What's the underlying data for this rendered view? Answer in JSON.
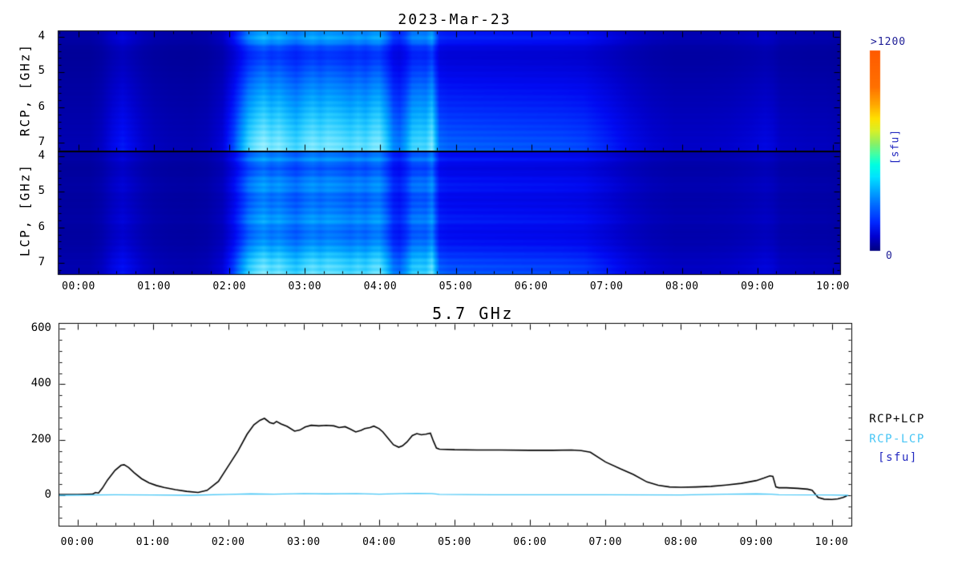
{
  "background": "#ffffff",
  "chart_data": [
    {
      "type": "heatmap",
      "title": "2023-Mar-23",
      "panels": [
        {
          "label": "RCP, [GHz]",
          "freq_tick_labels": [
            "4",
            "5",
            "6",
            "7"
          ]
        },
        {
          "label": "LCP, [GHz]",
          "freq_tick_labels": [
            "4",
            "5",
            "6",
            "7"
          ]
        }
      ],
      "x_tick_labels": [
        "00:00",
        "01:00",
        "02:00",
        "03:00",
        "04:00",
        "05:00",
        "06:00",
        "07:00",
        "08:00",
        "09:00",
        "10:00"
      ],
      "x_range_hours": [
        -0.28,
        10.1
      ],
      "freq_range_ghz": [
        3.84,
        7.3
      ],
      "value_range_sfu": [
        0,
        1200
      ],
      "colorbar": {
        "max_label": ">1200",
        "min_label": "0",
        "unit_label": "[sfu]",
        "label_color": "#1c1c96",
        "stops": [
          [
            0,
            "#000080"
          ],
          [
            0.07,
            "#0000d0"
          ],
          [
            0.14,
            "#0028ff"
          ],
          [
            0.22,
            "#0064ff"
          ],
          [
            0.3,
            "#00a8ff"
          ],
          [
            0.37,
            "#00e4ff"
          ],
          [
            0.43,
            "#00ffe0"
          ],
          [
            0.48,
            "#40ffa8"
          ],
          [
            0.54,
            "#90f060"
          ],
          [
            0.6,
            "#d8f028"
          ],
          [
            0.66,
            "#ffe000"
          ],
          [
            0.73,
            "#ffa800"
          ],
          [
            0.82,
            "#ff7000"
          ],
          [
            1,
            "#ff5a00"
          ]
        ]
      },
      "colormap": [
        [
          0,
          "#000078"
        ],
        [
          0.08,
          "#0000a2"
        ],
        [
          0.16,
          "#0000ca"
        ],
        [
          0.25,
          "#000af2"
        ],
        [
          0.35,
          "#0038ff"
        ],
        [
          0.45,
          "#0072ff"
        ],
        [
          0.55,
          "#00a2ff"
        ],
        [
          0.65,
          "#22c8ff"
        ],
        [
          0.75,
          "#5adeff"
        ],
        [
          0.85,
          "#92eeff"
        ],
        [
          1,
          "#caf8ff"
        ]
      ],
      "base_level": 0.03,
      "texture_amplitude": {
        "rcp": 0.035,
        "lcp": 0.05
      },
      "time_profile": [
        [
          -0.28,
          0.1
        ],
        [
          0.15,
          0.1
        ],
        [
          0.3,
          0.14
        ],
        [
          0.45,
          0.24
        ],
        [
          0.58,
          0.3
        ],
        [
          0.7,
          0.24
        ],
        [
          0.85,
          0.17
        ],
        [
          1.0,
          0.13
        ],
        [
          1.2,
          0.11
        ],
        [
          1.5,
          0.1
        ],
        [
          1.7,
          0.12
        ],
        [
          1.9,
          0.2
        ],
        [
          2.05,
          0.42
        ],
        [
          2.15,
          0.62
        ],
        [
          2.25,
          0.82
        ],
        [
          2.35,
          0.92
        ],
        [
          2.45,
          1.0
        ],
        [
          2.55,
          0.9
        ],
        [
          2.65,
          0.96
        ],
        [
          2.75,
          0.88
        ],
        [
          2.88,
          0.8
        ],
        [
          3.0,
          0.9
        ],
        [
          3.1,
          0.95
        ],
        [
          3.2,
          0.88
        ],
        [
          3.3,
          0.94
        ],
        [
          3.45,
          0.9
        ],
        [
          3.6,
          0.84
        ],
        [
          3.7,
          0.9
        ],
        [
          3.8,
          0.84
        ],
        [
          3.9,
          0.93
        ],
        [
          3.98,
          0.95
        ],
        [
          4.08,
          0.76
        ],
        [
          4.17,
          0.56
        ],
        [
          4.25,
          0.52
        ],
        [
          4.33,
          0.62
        ],
        [
          4.42,
          0.8
        ],
        [
          4.52,
          0.82
        ],
        [
          4.6,
          0.8
        ],
        [
          4.68,
          0.95
        ],
        [
          4.73,
          0.7
        ],
        [
          4.78,
          0.5
        ],
        [
          4.9,
          0.47
        ],
        [
          5.2,
          0.46
        ],
        [
          5.6,
          0.45
        ],
        [
          6.0,
          0.44
        ],
        [
          6.4,
          0.43
        ],
        [
          6.7,
          0.41
        ],
        [
          7.0,
          0.33
        ],
        [
          7.3,
          0.24
        ],
        [
          7.6,
          0.18
        ],
        [
          7.9,
          0.15
        ],
        [
          8.3,
          0.15
        ],
        [
          8.6,
          0.16
        ],
        [
          8.9,
          0.19
        ],
        [
          9.1,
          0.22
        ],
        [
          9.2,
          0.2
        ],
        [
          9.3,
          0.15
        ],
        [
          9.5,
          0.14
        ],
        [
          9.7,
          0.13
        ],
        [
          9.9,
          0.13
        ],
        [
          10.1,
          0.11
        ]
      ],
      "rcp_band_profile": [
        [
          3.8,
          0.5
        ],
        [
          3.95,
          0.56
        ],
        [
          4.05,
          0.58
        ],
        [
          4.15,
          0.5
        ],
        [
          4.3,
          0.38
        ],
        [
          4.5,
          0.33
        ],
        [
          4.7,
          0.36
        ],
        [
          5.0,
          0.42
        ],
        [
          5.5,
          0.52
        ],
        [
          6.0,
          0.62
        ],
        [
          6.5,
          0.72
        ],
        [
          7.0,
          0.82
        ],
        [
          7.3,
          0.85
        ]
      ],
      "lcp_band_profile": [
        [
          3.85,
          0.4
        ],
        [
          4.0,
          0.5
        ],
        [
          4.1,
          0.53
        ],
        [
          4.25,
          0.4
        ],
        [
          4.45,
          0.42
        ],
        [
          4.65,
          0.5
        ],
        [
          4.9,
          0.53
        ],
        [
          5.1,
          0.44
        ],
        [
          5.35,
          0.46
        ],
        [
          5.6,
          0.5
        ],
        [
          5.8,
          0.56
        ],
        [
          6.0,
          0.47
        ],
        [
          6.2,
          0.46
        ],
        [
          6.45,
          0.52
        ],
        [
          6.7,
          0.62
        ],
        [
          6.95,
          0.72
        ],
        [
          7.15,
          0.77
        ],
        [
          7.3,
          0.78
        ]
      ]
    },
    {
      "type": "line",
      "title": "5.7 GHz",
      "x_tick_labels": [
        "00:00",
        "01:00",
        "02:00",
        "03:00",
        "04:00",
        "05:00",
        "06:00",
        "07:00",
        "08:00",
        "09:00",
        "10:00"
      ],
      "y_tick_labels": [
        "600",
        "400",
        "200",
        "0"
      ],
      "ylim": [
        -110,
        620
      ],
      "x_range_hours": [
        -0.25,
        10.26
      ],
      "unit_label": "[sfu]",
      "unit_color": "#2228c0",
      "series": [
        {
          "name": "RCP+LCP",
          "color": "#000000",
          "points": [
            [
              -0.25,
              3
            ],
            [
              0.0,
              3
            ],
            [
              0.2,
              4
            ],
            [
              0.24,
              10
            ],
            [
              0.28,
              8
            ],
            [
              0.33,
              25
            ],
            [
              0.4,
              55
            ],
            [
              0.5,
              90
            ],
            [
              0.58,
              108
            ],
            [
              0.62,
              110
            ],
            [
              0.68,
              100
            ],
            [
              0.75,
              82
            ],
            [
              0.85,
              60
            ],
            [
              0.95,
              45
            ],
            [
              1.05,
              35
            ],
            [
              1.15,
              28
            ],
            [
              1.3,
              20
            ],
            [
              1.45,
              14
            ],
            [
              1.6,
              10
            ],
            [
              1.72,
              18
            ],
            [
              1.87,
              50
            ],
            [
              2.0,
              105
            ],
            [
              2.13,
              160
            ],
            [
              2.25,
              220
            ],
            [
              2.34,
              254
            ],
            [
              2.42,
              270
            ],
            [
              2.48,
              277
            ],
            [
              2.55,
              262
            ],
            [
              2.6,
              258
            ],
            [
              2.64,
              266
            ],
            [
              2.7,
              257
            ],
            [
              2.78,
              248
            ],
            [
              2.88,
              231
            ],
            [
              2.95,
              235
            ],
            [
              3.02,
              246
            ],
            [
              3.1,
              252
            ],
            [
              3.2,
              250
            ],
            [
              3.3,
              252
            ],
            [
              3.4,
              250
            ],
            [
              3.47,
              244
            ],
            [
              3.55,
              247
            ],
            [
              3.62,
              238
            ],
            [
              3.69,
              228
            ],
            [
              3.76,
              234
            ],
            [
              3.81,
              240
            ],
            [
              3.88,
              244
            ],
            [
              3.93,
              249
            ],
            [
              4.0,
              240
            ],
            [
              4.05,
              228
            ],
            [
              4.12,
              205
            ],
            [
              4.19,
              182
            ],
            [
              4.26,
              173
            ],
            [
              4.31,
              178
            ],
            [
              4.37,
              192
            ],
            [
              4.44,
              215
            ],
            [
              4.5,
              222
            ],
            [
              4.56,
              218
            ],
            [
              4.62,
              220
            ],
            [
              4.68,
              224
            ],
            [
              4.72,
              195
            ],
            [
              4.76,
              170
            ],
            [
              4.8,
              166
            ],
            [
              5.0,
              164
            ],
            [
              5.3,
              163
            ],
            [
              5.6,
              163
            ],
            [
              6.0,
              162
            ],
            [
              6.3,
              162
            ],
            [
              6.55,
              163
            ],
            [
              6.68,
              161
            ],
            [
              6.8,
              155
            ],
            [
              7.0,
              120
            ],
            [
              7.2,
              95
            ],
            [
              7.37,
              75
            ],
            [
              7.55,
              48
            ],
            [
              7.7,
              36
            ],
            [
              7.85,
              30
            ],
            [
              8.0,
              29
            ],
            [
              8.2,
              30
            ],
            [
              8.4,
              32
            ],
            [
              8.6,
              37
            ],
            [
              8.8,
              43
            ],
            [
              9.0,
              53
            ],
            [
              9.1,
              62
            ],
            [
              9.18,
              70
            ],
            [
              9.22,
              68
            ],
            [
              9.26,
              30
            ],
            [
              9.3,
              27
            ],
            [
              9.4,
              27
            ],
            [
              9.55,
              25
            ],
            [
              9.68,
              22
            ],
            [
              9.74,
              18
            ],
            [
              9.78,
              5
            ],
            [
              9.82,
              -8
            ],
            [
              9.9,
              -14
            ],
            [
              10.0,
              -15
            ],
            [
              10.08,
              -13
            ],
            [
              10.15,
              -8
            ],
            [
              10.2,
              -2
            ]
          ]
        },
        {
          "name": "RCP-LCP",
          "color": "#45c5f5",
          "points": [
            [
              -0.25,
              0
            ],
            [
              0.5,
              2
            ],
            [
              1.0,
              1
            ],
            [
              1.5,
              0
            ],
            [
              2.0,
              3
            ],
            [
              2.3,
              5
            ],
            [
              2.6,
              4
            ],
            [
              3.0,
              6
            ],
            [
              3.3,
              5
            ],
            [
              3.7,
              6
            ],
            [
              4.0,
              4
            ],
            [
              4.3,
              6
            ],
            [
              4.5,
              7
            ],
            [
              4.7,
              6
            ],
            [
              4.8,
              3
            ],
            [
              5.5,
              2
            ],
            [
              6.5,
              2
            ],
            [
              7.0,
              2
            ],
            [
              8.0,
              1
            ],
            [
              8.6,
              4
            ],
            [
              9.0,
              5
            ],
            [
              9.2,
              4
            ],
            [
              9.3,
              2
            ],
            [
              10.0,
              1
            ],
            [
              10.22,
              0
            ]
          ]
        }
      ]
    }
  ]
}
